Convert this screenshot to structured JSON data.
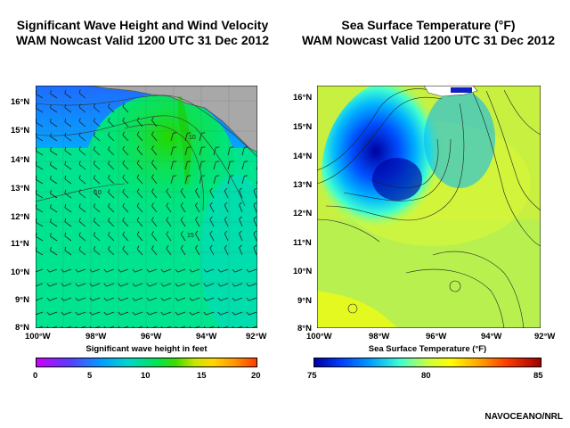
{
  "left_panel": {
    "title_line1": "Significant Wave Height and Wind Velocity",
    "title_line2": "WAM Nowcast Valid 1200 UTC 31 Dec 2012",
    "lat_labels": [
      "16°N",
      "15°N",
      "14°N",
      "13°N",
      "12°N",
      "11°N",
      "10°N",
      "9°N",
      "8°N"
    ],
    "lon_labels": [
      "100°W",
      "98°W",
      "96°W",
      "94°W",
      "92°W"
    ],
    "colorbar_title": "Significant wave height in feet",
    "colorbar_ticks": [
      "0",
      "5",
      "10",
      "15",
      "20"
    ],
    "contour_labels": [
      "10",
      "10",
      "15"
    ],
    "colors": [
      "#cc00ff",
      "#5a3cff",
      "#00a0ff",
      "#00d7c8",
      "#00e650",
      "#3cdc00",
      "#c8e600",
      "#ffd700",
      "#ff9600",
      "#ff3c00"
    ]
  },
  "right_panel": {
    "title_line1": "Sea Surface Temperature (°F)",
    "title_line2": "WAM Nowcast Valid 1200 UTC 31 Dec 2012",
    "lat_labels": [
      "16°N",
      "15°N",
      "14°N",
      "13°N",
      "12°N",
      "11°N",
      "10°N",
      "9°N",
      "8°N"
    ],
    "lon_labels": [
      "100°W",
      "98°W",
      "96°W",
      "94°W",
      "92°W"
    ],
    "colorbar_title": "Sea Surface Temperature (°F)",
    "colorbar_ticks": [
      "75",
      "80",
      "85"
    ],
    "colors": [
      "#0000a0",
      "#0050ff",
      "#00b4ff",
      "#40ffd0",
      "#c8ff40",
      "#ffff00",
      "#ffaa00",
      "#ff3c00",
      "#a00000"
    ]
  },
  "credit": "NAVOCEANO/NRL"
}
